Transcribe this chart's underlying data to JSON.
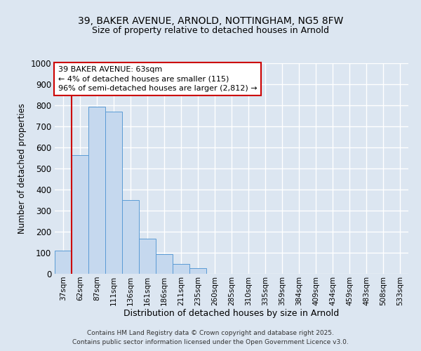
{
  "title_line1": "39, BAKER AVENUE, ARNOLD, NOTTINGHAM, NG5 8FW",
  "title_line2": "Size of property relative to detached houses in Arnold",
  "xlabel": "Distribution of detached houses by size in Arnold",
  "ylabel": "Number of detached properties",
  "categories": [
    "37sqm",
    "62sqm",
    "87sqm",
    "111sqm",
    "136sqm",
    "161sqm",
    "186sqm",
    "211sqm",
    "235sqm",
    "260sqm",
    "285sqm",
    "310sqm",
    "335sqm",
    "359sqm",
    "384sqm",
    "409sqm",
    "434sqm",
    "459sqm",
    "483sqm",
    "508sqm",
    "533sqm"
  ],
  "values": [
    110,
    565,
    795,
    770,
    350,
    168,
    95,
    47,
    28,
    0,
    0,
    0,
    0,
    0,
    0,
    0,
    0,
    0,
    0,
    0,
    0
  ],
  "bar_color": "#c5d8ee",
  "bar_edge_color": "#5b9bd5",
  "background_color": "#dce6f1",
  "grid_color": "#ffffff",
  "annotation_text": "39 BAKER AVENUE: 63sqm\n← 4% of detached houses are smaller (115)\n96% of semi-detached houses are larger (2,812) →",
  "annotation_box_color": "#ffffff",
  "annotation_box_edge_color": "#cc0000",
  "vline_color": "#cc0000",
  "ylim": [
    0,
    1000
  ],
  "yticks": [
    0,
    100,
    200,
    300,
    400,
    500,
    600,
    700,
    800,
    900,
    1000
  ],
  "footer_line1": "Contains HM Land Registry data © Crown copyright and database right 2025.",
  "footer_line2": "Contains public sector information licensed under the Open Government Licence v3.0."
}
